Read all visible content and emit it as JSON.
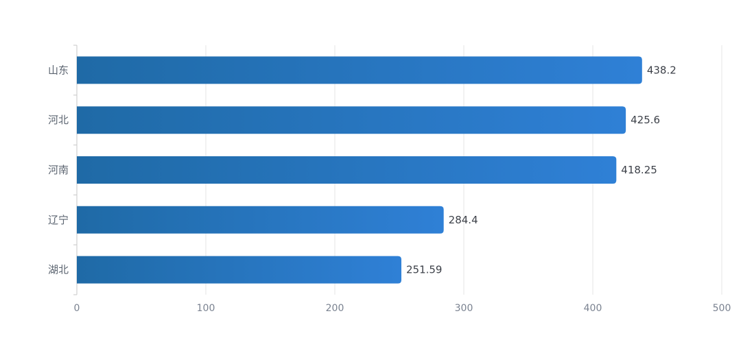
{
  "chart_data": {
    "type": "bar",
    "orientation": "horizontal",
    "categories": [
      "山东",
      "河北",
      "河南",
      "辽宁",
      "湖北"
    ],
    "values": [
      438.2,
      425.6,
      418.25,
      284.4,
      251.59
    ],
    "value_labels": [
      "438.2",
      "425.6",
      "418.25",
      "284.4",
      "251.59"
    ],
    "x_ticks": [
      "0",
      "100",
      "200",
      "300",
      "400",
      "500"
    ],
    "xlim": [
      0,
      500
    ],
    "grid": "vertical",
    "legend": "none"
  },
  "colors": {
    "bar_start": "#1f6aa6",
    "bar_end": "#2f80d6",
    "grid": "#e6e6e6",
    "axis": "#c7c7c7",
    "tick_label": "#7a8290",
    "category_label": "#5b6470",
    "value_label": "#3c4048"
  }
}
